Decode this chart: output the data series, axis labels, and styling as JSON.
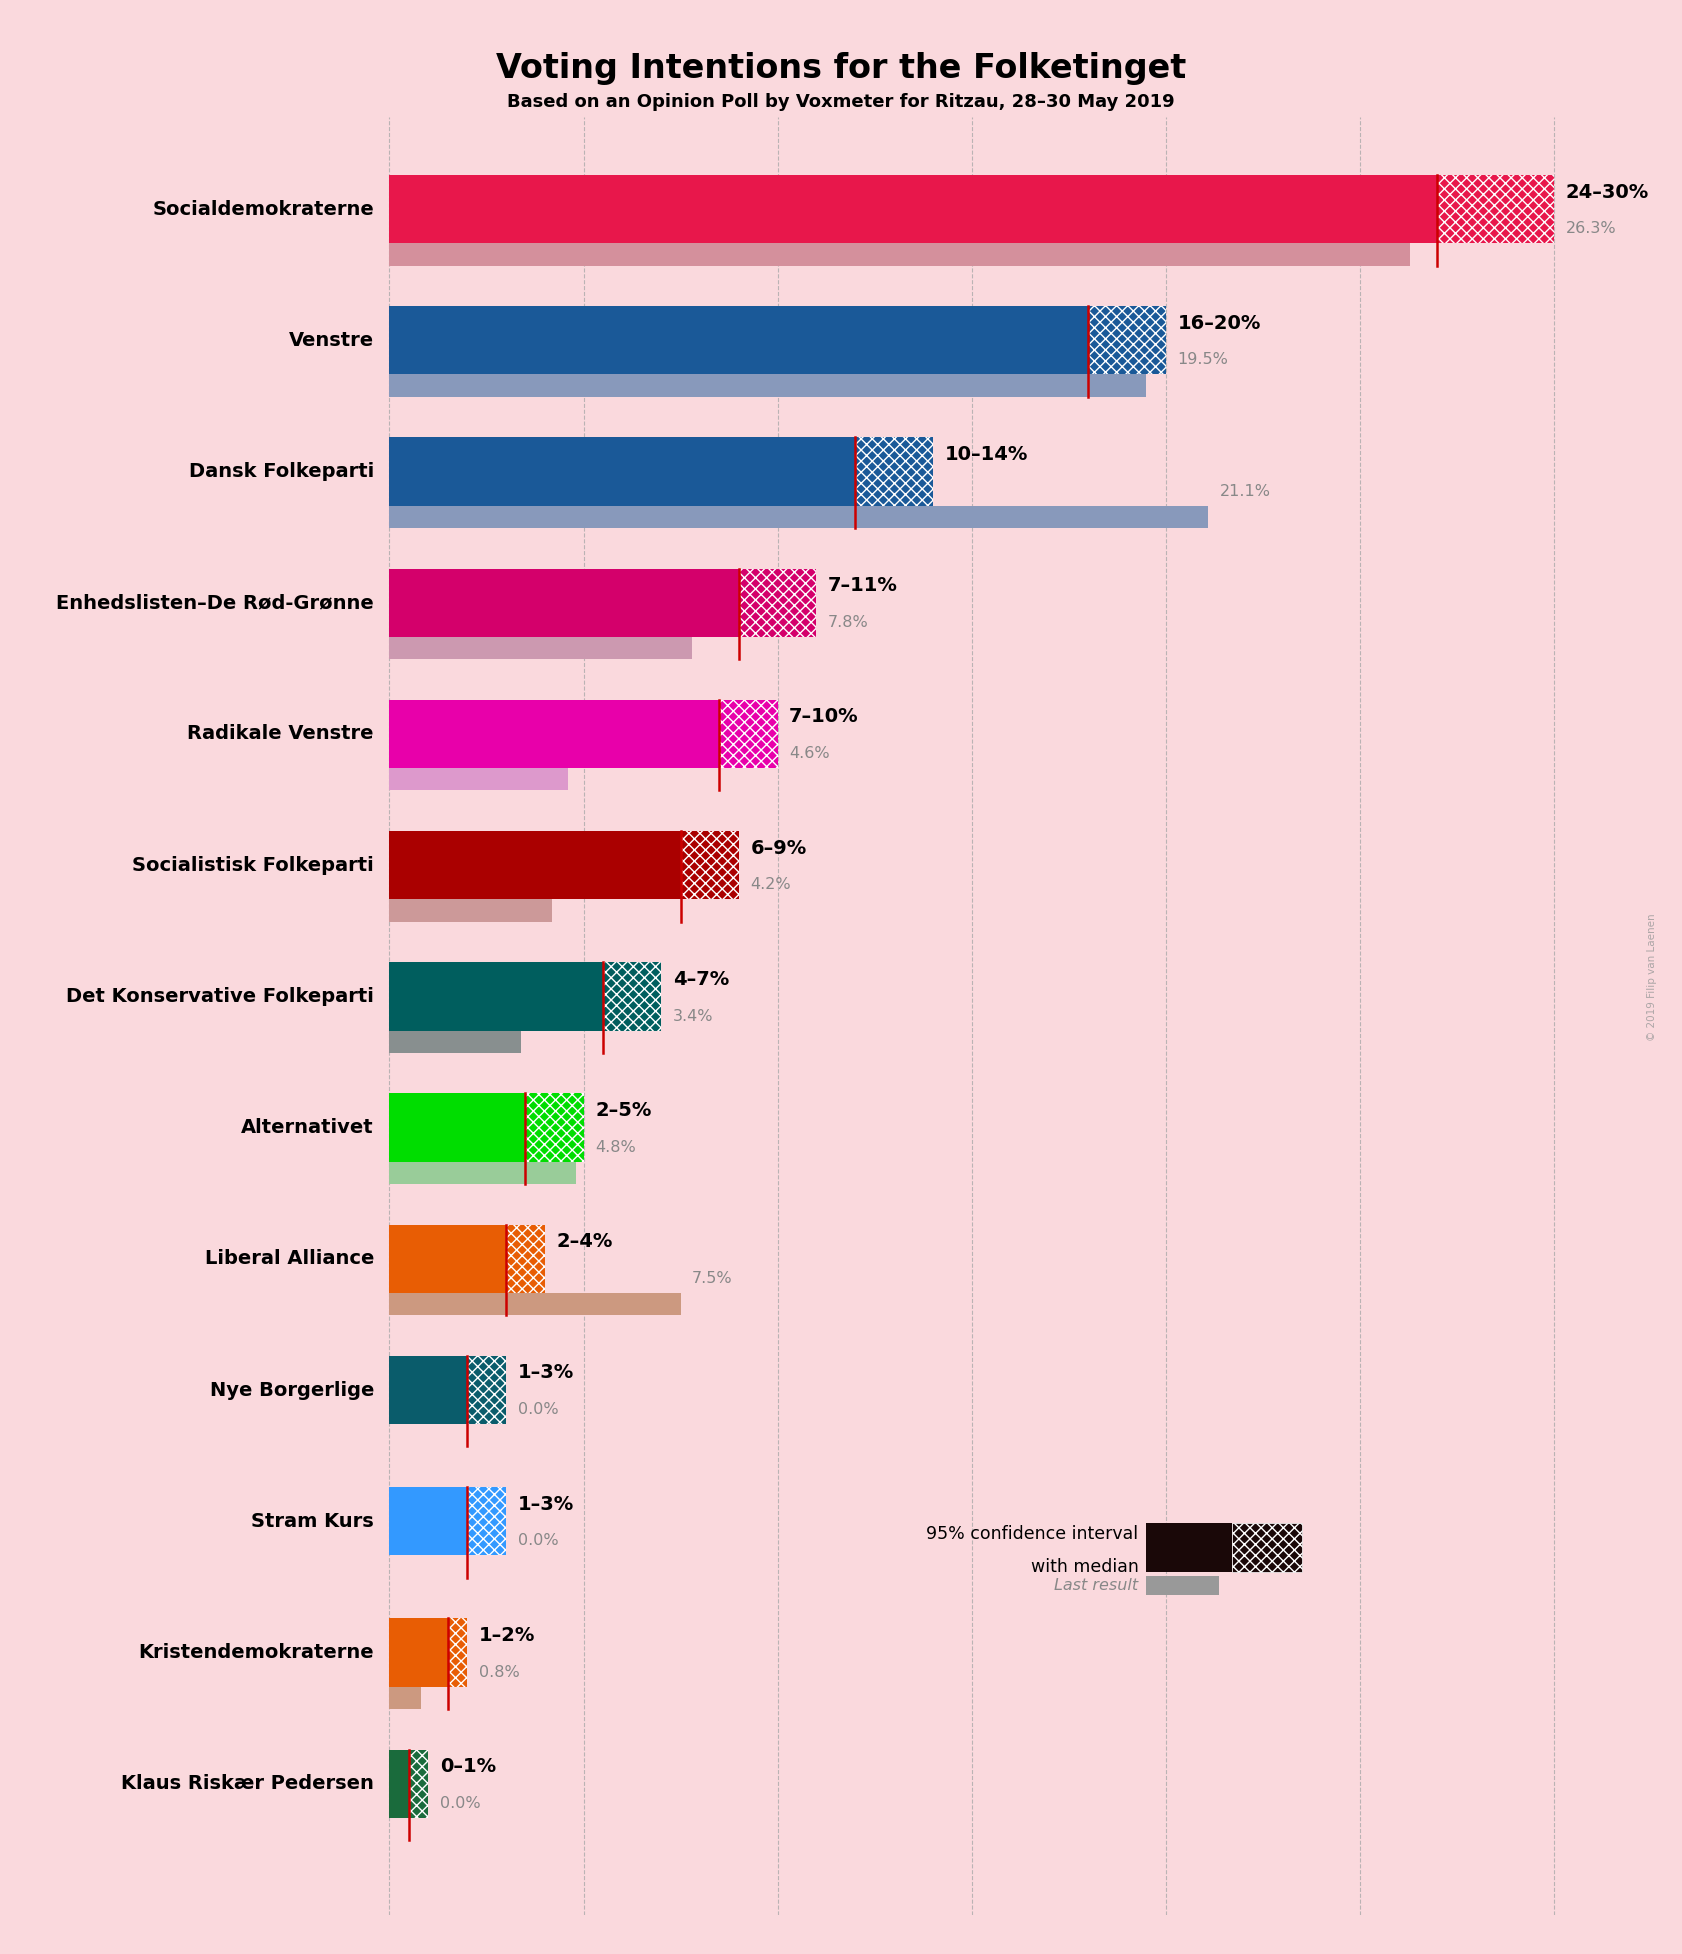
{
  "title": "Voting Intentions for the Folketinget",
  "subtitle": "Based on an Opinion Poll by Voxmeter for Ritzau, 28–30 May 2019",
  "background_color": "#fad9dd",
  "parties": [
    {
      "name": "Socialdemokraterne",
      "ci_low": 24,
      "ci_high": 30,
      "median": 27,
      "last": 26.3,
      "color": "#e8174b",
      "last_color": "#d4909c",
      "label": "24–30%",
      "last_label": "26.3%"
    },
    {
      "name": "Venstre",
      "ci_low": 16,
      "ci_high": 20,
      "median": 18,
      "last": 19.5,
      "color": "#1a5998",
      "last_color": "#8899bb",
      "label": "16–20%",
      "last_label": "19.5%"
    },
    {
      "name": "Dansk Folkeparti",
      "ci_low": 10,
      "ci_high": 14,
      "median": 12,
      "last": 21.1,
      "color": "#1a5998",
      "last_color": "#8899bb",
      "label": "10–14%",
      "last_label": "21.1%"
    },
    {
      "name": "Enhedslisten–De Rød-Grønne",
      "ci_low": 7,
      "ci_high": 11,
      "median": 9,
      "last": 7.8,
      "color": "#d4006b",
      "last_color": "#cc99b0",
      "label": "7–11%",
      "last_label": "7.8%"
    },
    {
      "name": "Radikale Venstre",
      "ci_low": 7,
      "ci_high": 10,
      "median": 8.5,
      "last": 4.6,
      "color": "#e800aa",
      "last_color": "#dd99cc",
      "label": "7–10%",
      "last_label": "4.6%"
    },
    {
      "name": "Socialistisk Folkeparti",
      "ci_low": 6,
      "ci_high": 9,
      "median": 7.5,
      "last": 4.2,
      "color": "#aa0000",
      "last_color": "#cc9999",
      "label": "6–9%",
      "last_label": "4.2%"
    },
    {
      "name": "Det Konservative Folkeparti",
      "ci_low": 4,
      "ci_high": 7,
      "median": 5.5,
      "last": 3.4,
      "color": "#005e5e",
      "last_color": "#888f8f",
      "label": "4–7%",
      "last_label": "3.4%"
    },
    {
      "name": "Alternativet",
      "ci_low": 2,
      "ci_high": 5,
      "median": 3.5,
      "last": 4.8,
      "color": "#00dd00",
      "last_color": "#99cc99",
      "label": "2–5%",
      "last_label": "4.8%"
    },
    {
      "name": "Liberal Alliance",
      "ci_low": 2,
      "ci_high": 4,
      "median": 3,
      "last": 7.5,
      "color": "#e85d04",
      "last_color": "#cc9980",
      "label": "2–4%",
      "last_label": "7.5%"
    },
    {
      "name": "Nye Borgerlige",
      "ci_low": 1,
      "ci_high": 3,
      "median": 2,
      "last": 0.0,
      "color": "#0a5c6b",
      "last_color": "#889999",
      "label": "1–3%",
      "last_label": "0.0%"
    },
    {
      "name": "Stram Kurs",
      "ci_low": 1,
      "ci_high": 3,
      "median": 2,
      "last": 0.0,
      "color": "#3399ff",
      "last_color": "#99bbdd",
      "label": "1–3%",
      "last_label": "0.0%"
    },
    {
      "name": "Kristendemokraterne",
      "ci_low": 1,
      "ci_high": 2,
      "median": 1.5,
      "last": 0.8,
      "color": "#e85d04",
      "last_color": "#cc9980",
      "label": "1–2%",
      "last_label": "0.8%"
    },
    {
      "name": "Klaus Riskær Pedersen",
      "ci_low": 0,
      "ci_high": 1,
      "median": 0.5,
      "last": 0.0,
      "color": "#1a6b3c",
      "last_color": "#88998f",
      "label": "0–1%",
      "last_label": "0.0%"
    }
  ],
  "xlim_max": 32,
  "bar_height": 0.52,
  "last_bar_height": 0.17,
  "gridline_color": "#aaaaaa",
  "median_line_color": "#cc0000",
  "legend_text1": "95% confidence interval",
  "legend_text2": "with median",
  "legend_last": "Last result",
  "watermark": "© 2019 Filip van Laenen"
}
